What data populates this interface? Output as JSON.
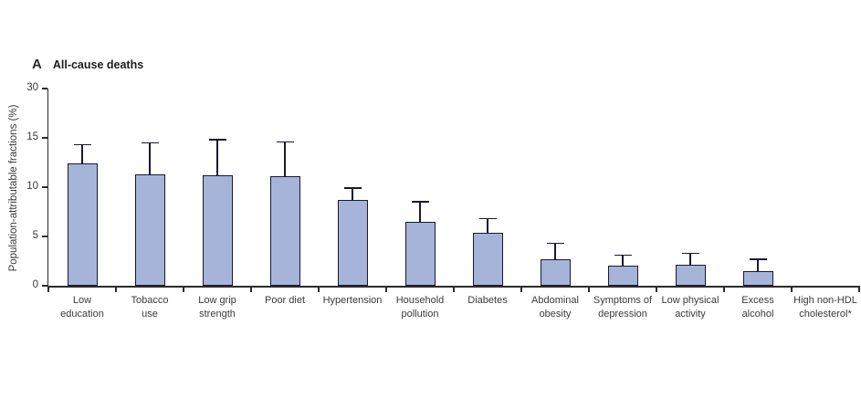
{
  "figure": {
    "panel_letter": "A",
    "panel_title": "All-cause deaths"
  },
  "chart_data": {
    "type": "bar",
    "title": "All-cause deaths",
    "xlabel": "",
    "ylabel": "Population-attributable fractions (%)",
    "y_ticks": [
      0,
      5,
      10,
      15,
      30
    ],
    "ylim": [
      0,
      30
    ],
    "y_axis_note": "interval 15-30 compressed into a single tick spacing",
    "grid": false,
    "legend": "none",
    "error_bars": "upper 95% CI whisker only",
    "categories": [
      "Low education",
      "Tobacco use",
      "Low grip strength",
      "Poor diet",
      "Hypertension",
      "Household pollution",
      "Diabetes",
      "Abdominal obesity",
      "Symptoms of depression",
      "Low physical activity",
      "Excess alcohol",
      "High non-HDL cholesterol*"
    ],
    "category_label_lines": [
      [
        "Low",
        "education"
      ],
      [
        "Tobacco",
        "use"
      ],
      [
        "Low grip",
        "strength"
      ],
      [
        "Poor diet"
      ],
      [
        "Hypertension"
      ],
      [
        "Household",
        "pollution"
      ],
      [
        "Diabetes"
      ],
      [
        "Abdominal",
        "obesity"
      ],
      [
        "Symptoms of",
        "depression"
      ],
      [
        "Low physical",
        "activity"
      ],
      [
        "Excess",
        "alcohol"
      ],
      [
        "High non-HDL",
        "cholesterol*"
      ]
    ],
    "values": [
      12.4,
      11.3,
      11.2,
      11.1,
      8.7,
      6.5,
      5.4,
      2.7,
      2.0,
      2.1,
      1.5,
      0
    ],
    "upper_ci": [
      14.3,
      14.5,
      14.8,
      14.6,
      9.9,
      8.5,
      6.8,
      4.3,
      3.1,
      3.3,
      2.7,
      null
    ],
    "colors": {
      "bar_fill": "#a7b4d9",
      "bar_border": "#181830",
      "axis": "#2b2b2b",
      "tick_text": "#3a3a3a",
      "title_text": "#1c1c1c"
    }
  }
}
